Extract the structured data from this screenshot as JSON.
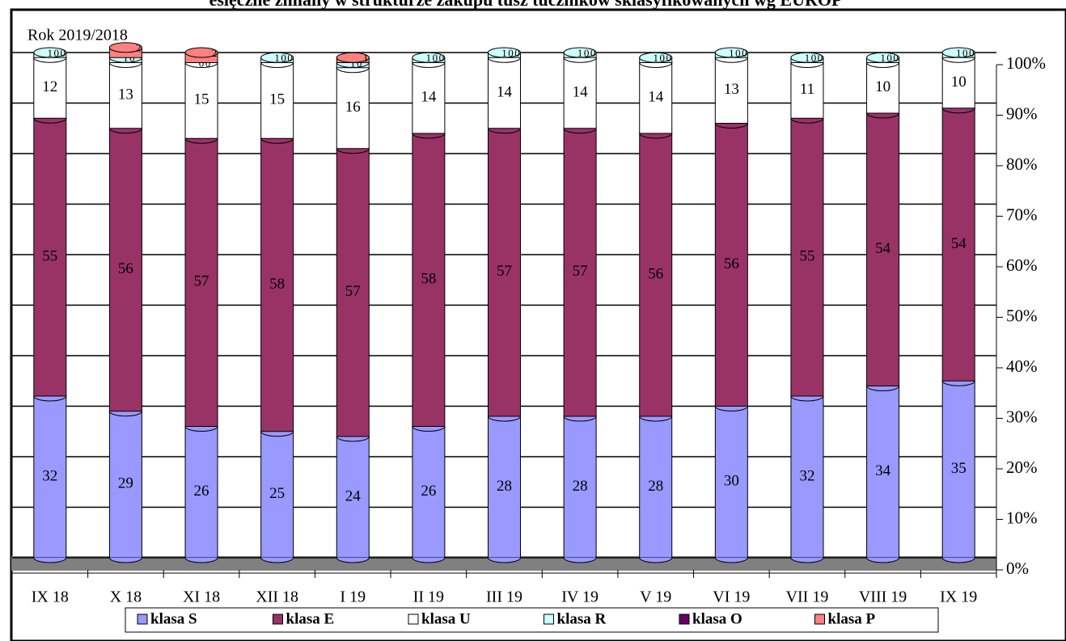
{
  "chart_data": {
    "type": "bar",
    "stacked": true,
    "title": "esięczne zmiany w strukturze zakupu tusz tuczników sklasyfikowanych wg EUROP",
    "subtitle": "Rok 2019/2018",
    "categories": [
      "IX 18",
      "X 18",
      "XI 18",
      "XII 18",
      "I 19",
      "II 19",
      "III 19",
      "IV 19",
      "V 19",
      "VI 19",
      "VII 19",
      "VIII 19",
      "IX 19"
    ],
    "series": [
      {
        "name": "klasa S",
        "color": "#9999ff",
        "values": [
          32,
          29,
          26,
          25,
          24,
          26,
          28,
          28,
          28,
          30,
          32,
          34,
          35
        ]
      },
      {
        "name": "klasa E",
        "color": "#993366",
        "values": [
          55,
          56,
          57,
          58,
          57,
          58,
          57,
          57,
          56,
          56,
          55,
          54,
          54
        ]
      },
      {
        "name": "klasa U",
        "color": "#ffffff",
        "values": [
          12,
          13,
          15,
          15,
          16,
          14,
          14,
          14,
          14,
          13,
          11,
          10,
          10
        ]
      },
      {
        "name": "klasa R",
        "color": "#ccffff",
        "values": [
          1,
          1,
          0,
          1,
          1,
          1,
          1,
          1,
          1,
          1,
          1,
          1,
          1
        ]
      },
      {
        "name": "klasa O",
        "color": "#660066",
        "values": [
          0,
          0,
          0,
          0,
          0,
          0,
          0,
          0,
          0,
          0,
          0,
          0,
          0
        ]
      },
      {
        "name": "klasa P",
        "color": "#ff8080",
        "values": [
          0,
          2,
          2,
          0,
          1,
          0,
          0,
          0,
          0,
          0,
          0,
          0,
          0
        ]
      }
    ],
    "ylim": [
      0,
      100
    ],
    "yticks": [
      {
        "value": 0,
        "label": "0%"
      },
      {
        "value": 10,
        "label": "10%"
      },
      {
        "value": 20,
        "label": "20%"
      },
      {
        "value": 30,
        "label": "30%"
      },
      {
        "value": 40,
        "label": "40%"
      },
      {
        "value": 50,
        "label": "50%"
      },
      {
        "value": 60,
        "label": "60%"
      },
      {
        "value": 70,
        "label": "70%"
      },
      {
        "value": 80,
        "label": "80%"
      },
      {
        "value": 90,
        "label": "90%"
      },
      {
        "value": 100,
        "label": "100%"
      }
    ],
    "grid": true
  }
}
